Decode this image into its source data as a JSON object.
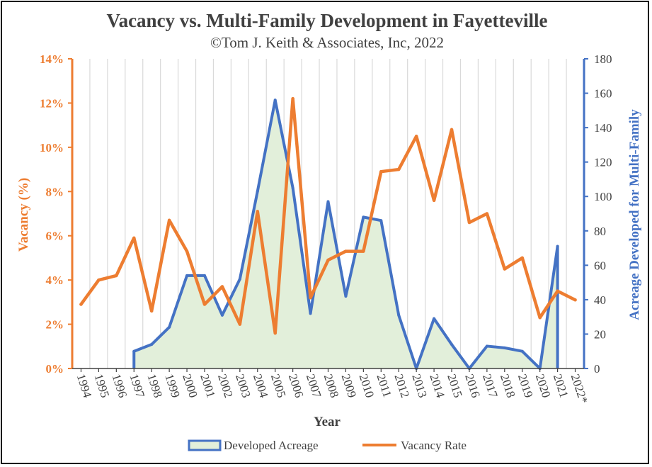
{
  "chart_data": {
    "type": "line",
    "title": "Vacancy vs. Multi-Family Development in Fayetteville",
    "subtitle": "©Tom J. Keith & Associates, Inc, 2022",
    "xlabel": "Year",
    "ylabel_left": "Vacancy (%)",
    "ylabel_right": "Acreage Developed for Multi-Family",
    "categories": [
      "1994",
      "1995",
      "1996",
      "1997",
      "1998",
      "1999",
      "2000",
      "2001",
      "2002",
      "2003",
      "2004",
      "2005",
      "2006",
      "2007",
      "2008",
      "2009",
      "2010",
      "2011",
      "2012",
      "2013",
      "2014",
      "2015",
      "2016",
      "2017",
      "2018",
      "2019",
      "2020",
      "2021",
      "2022*"
    ],
    "left_axis": {
      "min": 0,
      "max": 14,
      "step": 2,
      "unit": "%"
    },
    "right_axis": {
      "min": 0,
      "max": 180,
      "step": 20
    },
    "grid": true,
    "legend_position": "bottom",
    "series": [
      {
        "name": "Developed Acreage",
        "axis": "right",
        "style": "area",
        "color": "#4472C4",
        "fill": "#E2EFDA",
        "values": [
          null,
          null,
          null,
          10,
          14,
          24,
          54,
          54,
          31,
          52,
          103,
          156,
          105,
          32,
          97,
          42,
          88,
          86,
          31,
          0,
          29,
          14,
          0,
          13,
          12,
          10,
          0,
          71,
          null
        ]
      },
      {
        "name": "Vacancy Rate",
        "axis": "left",
        "style": "line",
        "color": "#ED7D31",
        "values": [
          2.9,
          4.0,
          4.2,
          5.9,
          2.6,
          6.7,
          5.3,
          2.9,
          3.7,
          2.0,
          7.1,
          1.6,
          12.2,
          3.2,
          4.9,
          5.3,
          5.3,
          8.9,
          9.0,
          10.5,
          7.6,
          10.8,
          6.6,
          7.0,
          4.5,
          5.0,
          2.3,
          3.5,
          3.1
        ]
      }
    ]
  },
  "colors": {
    "left_axis": "#ED7D31",
    "right_axis": "#4472C4",
    "grid": "#D9D9D9",
    "title": "#404040"
  }
}
